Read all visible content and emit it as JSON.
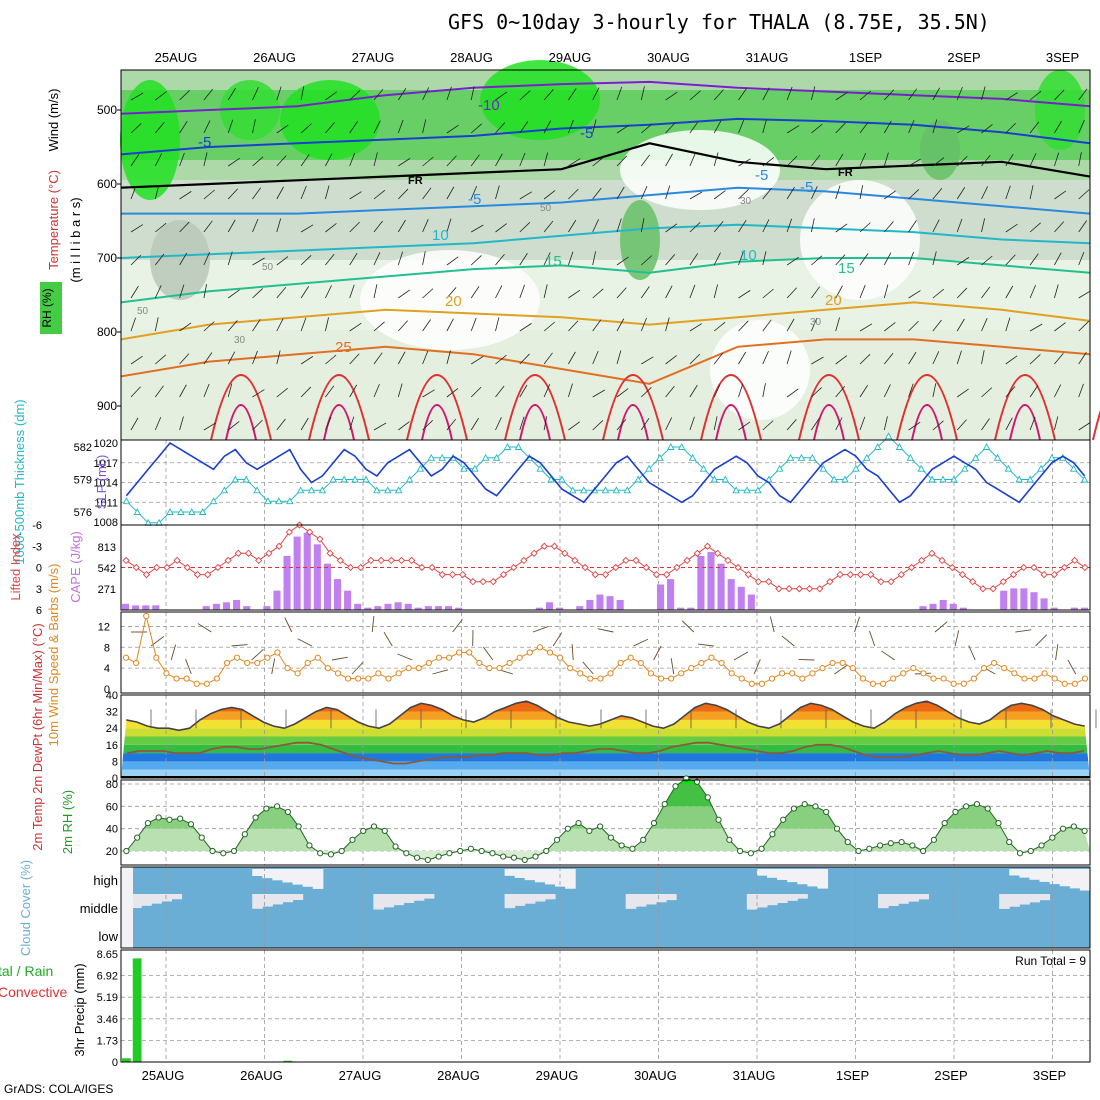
{
  "title": "GFS 0~10day 3-hourly for THALA (8.75E, 35.5N)",
  "credit": "GrADS: COLA/IGES",
  "colors": {
    "temp_line": "#dd3322",
    "dewpt_line": "#8a5a3a",
    "slp": "#1a3fd0",
    "thickness": "#22b8c8",
    "lifted": "#dd4444",
    "cape": "#c080f0",
    "wind": "#e08820",
    "rh": "#229922",
    "cloud": "#6aaed6",
    "cloud_bg": "#e6e6ec",
    "precip": "#22cc22"
  },
  "chart_data": [
    {
      "type": "heatmap",
      "panel": "vertical-cross-section",
      "ylabel_parts": [
        "Wind (m/s)",
        "Temperature (°C)",
        "(m i l l i b a r s)",
        "RH (%)"
      ],
      "y_ticks": [
        "500",
        "600",
        "700",
        "800",
        "900"
      ],
      "x_labels": [
        "25AUG",
        "26AUG",
        "27AUG",
        "28AUG",
        "29AUG",
        "30AUG",
        "31AUG",
        "1SEP",
        "2SEP",
        "3SEP"
      ],
      "contour_labels": [
        "-10",
        "-5",
        "-5",
        "-5",
        "FR",
        "FR",
        "-5",
        "-5",
        "10",
        "10",
        "15",
        "15",
        "20",
        "20",
        "25",
        "50",
        "50",
        "50",
        "30",
        "30",
        "30"
      ]
    },
    {
      "type": "line",
      "panel": "thickness-slp",
      "ylabel_left": "1000-500mb Thickness (dm)",
      "ylabel_right": "SLP (mb)",
      "y_left_ticks": [
        "582",
        "579",
        "576"
      ],
      "y_right_ticks": [
        "1020",
        "1017",
        "1014",
        "1011",
        "1008"
      ],
      "series": [
        {
          "name": "SLP (mb)",
          "axis": "right",
          "values": [
            1012,
            1014,
            1016,
            1018,
            1020,
            1019,
            1018,
            1017,
            1016,
            1018,
            1019,
            1017,
            1016,
            1017,
            1018,
            1019,
            1016,
            1014,
            1015,
            1017,
            1019,
            1018,
            1016,
            1015,
            1017,
            1018,
            1019,
            1017,
            1015,
            1016,
            1018,
            1017,
            1015,
            1013,
            1012,
            1014,
            1016,
            1018,
            1017,
            1015,
            1013,
            1012,
            1011,
            1013,
            1015,
            1017,
            1018,
            1016,
            1014,
            1013,
            1012,
            1011,
            1012,
            1014,
            1016,
            1017,
            1018,
            1017,
            1015,
            1014,
            1012,
            1011,
            1013,
            1015,
            1017,
            1018,
            1019,
            1018,
            1016,
            1015,
            1013,
            1011,
            1012,
            1014,
            1016,
            1017,
            1018,
            1017,
            1016,
            1014,
            1013,
            1012,
            1011,
            1013,
            1015,
            1017,
            1018,
            1017,
            1015
          ]
        },
        {
          "name": "Thickness (dm)",
          "axis": "left",
          "values": [
            577,
            576,
            575,
            575,
            576,
            576,
            576,
            576,
            577,
            578,
            579,
            579,
            578,
            577,
            577,
            577,
            578,
            578,
            578,
            579,
            579,
            579,
            579,
            578,
            578,
            578,
            579,
            580,
            581,
            581,
            581,
            580,
            580,
            581,
            581,
            582,
            582,
            581,
            580,
            579,
            579,
            578,
            578,
            578,
            578,
            578,
            578,
            579,
            580,
            581,
            582,
            582,
            581,
            580,
            579,
            579,
            578,
            578,
            578,
            579,
            580,
            581,
            581,
            581,
            580,
            579,
            579,
            580,
            581,
            582,
            583,
            582,
            581,
            580,
            579,
            579,
            579,
            580,
            581,
            582,
            581,
            580,
            579,
            579,
            580,
            581,
            581,
            580,
            579
          ]
        }
      ]
    },
    {
      "type": "bar",
      "panel": "lifted-cape",
      "ylabel_left": "Lifted Index",
      "ylabel_right": "CAPE (J/kg)",
      "y_left_ticks": [
        "-6",
        "-3",
        "0",
        "3",
        "6"
      ],
      "y_right_ticks": [
        "813",
        "542",
        "271"
      ],
      "series": [
        {
          "name": "CAPE (J/kg)",
          "kind": "bar",
          "values": [
            80,
            60,
            60,
            60,
            0,
            0,
            0,
            0,
            50,
            80,
            100,
            130,
            50,
            0,
            50,
            250,
            700,
            950,
            1000,
            850,
            600,
            400,
            250,
            80,
            30,
            50,
            80,
            100,
            80,
            30,
            50,
            50,
            50,
            30,
            0,
            0,
            0,
            0,
            0,
            0,
            0,
            30,
            100,
            30,
            0,
            50,
            130,
            200,
            180,
            130,
            0,
            0,
            0,
            330,
            400,
            30,
            30,
            700,
            750,
            600,
            400,
            300,
            200,
            0,
            0,
            0,
            0,
            0,
            0,
            0,
            0,
            0,
            0,
            0,
            0,
            0,
            0,
            0,
            0,
            50,
            80,
            130,
            80,
            30,
            0,
            0,
            0,
            250,
            280,
            280,
            230,
            150,
            30,
            0,
            30,
            30
          ]
        },
        {
          "name": "Lifted Index",
          "kind": "line",
          "values": [
            -1,
            0,
            1,
            0,
            0,
            -1,
            0,
            1,
            1,
            0,
            -1,
            -2,
            -2,
            -1,
            -2,
            -3,
            -5,
            -6,
            -5,
            -4,
            -2,
            -1,
            0,
            0,
            -1,
            -1,
            -1,
            -1,
            -1,
            0,
            0,
            1,
            1,
            1,
            2,
            2,
            2,
            1,
            0,
            -1,
            -2,
            -3,
            -3,
            -2,
            -1,
            0,
            1,
            1,
            0,
            -1,
            -1,
            0,
            1,
            1,
            0,
            -1,
            -2,
            -3,
            -2,
            -1,
            0,
            1,
            2,
            2,
            3,
            3,
            3,
            3,
            3,
            2,
            1,
            1,
            1,
            1,
            2,
            2,
            1,
            0,
            -1,
            -2,
            -1,
            0,
            1,
            2,
            3,
            3,
            2,
            1,
            0,
            0,
            1,
            1,
            0,
            -1,
            0
          ]
        }
      ]
    },
    {
      "type": "line",
      "panel": "wind",
      "ylabel": "10m Wind Speed & Barbs (m/s)",
      "y_ticks": [
        "12",
        "8",
        "4",
        "0"
      ],
      "series": [
        {
          "name": "10m Wind Speed (m/s)",
          "values": [
            6,
            5,
            14,
            6,
            3,
            2,
            2,
            1,
            1,
            2,
            5,
            6,
            5,
            5,
            6,
            7,
            4,
            3,
            5,
            6,
            4,
            3,
            2,
            2,
            2,
            3,
            2,
            3,
            4,
            4,
            5,
            6,
            6,
            7,
            7,
            5,
            4,
            4,
            5,
            6,
            7,
            8,
            7,
            6,
            4,
            3,
            2,
            2,
            3,
            5,
            6,
            5,
            3,
            2,
            2,
            3,
            4,
            5,
            6,
            5,
            3,
            2,
            1,
            1,
            2,
            3,
            3,
            2,
            3,
            4,
            5,
            5,
            4,
            2,
            1,
            1,
            2,
            3,
            4,
            3,
            2,
            2,
            1,
            1,
            2,
            4,
            5,
            4,
            3,
            2,
            2,
            3,
            2,
            1,
            1,
            2
          ]
        }
      ]
    },
    {
      "type": "area",
      "panel": "2m-temp",
      "ylabel": "2m Temp 2m DewPt (6hr Min/Max) (°C)",
      "y_ticks": [
        "40",
        "32",
        "24",
        "16",
        "8",
        "0"
      ],
      "series": [
        {
          "name": "2m Temp",
          "values": [
            28,
            27,
            25,
            24,
            24,
            23,
            24,
            28,
            31,
            33,
            34,
            33,
            30,
            27,
            25,
            24,
            26,
            29,
            32,
            34,
            33,
            30,
            27,
            25,
            24,
            26,
            30,
            34,
            36,
            35,
            33,
            30,
            28,
            27,
            29,
            32,
            34,
            36,
            37,
            35,
            32,
            29,
            27,
            26,
            25,
            26,
            28,
            30,
            29,
            27,
            25,
            24,
            26,
            30,
            34,
            36,
            35,
            33,
            30,
            27,
            25,
            24,
            26,
            30,
            34,
            36,
            35,
            33,
            30,
            27,
            25,
            24,
            27,
            31,
            34,
            36,
            37,
            35,
            32,
            29,
            27,
            26,
            28,
            32,
            35,
            36,
            35,
            33,
            30,
            28,
            26,
            25
          ]
        },
        {
          "name": "2m DewPt",
          "values": [
            12,
            13,
            13,
            13,
            12,
            12,
            12,
            14,
            15,
            15,
            14,
            14,
            15,
            16,
            17,
            17,
            16,
            14,
            12,
            10,
            9,
            8,
            7,
            7,
            8,
            9,
            10,
            10,
            10,
            11,
            11,
            12,
            12,
            12,
            11,
            11,
            12,
            12,
            13,
            14,
            14,
            13,
            12,
            12,
            13,
            15,
            16,
            17,
            17,
            16,
            15,
            14,
            13,
            12,
            12,
            13,
            15,
            16,
            16,
            15,
            13,
            11,
            10,
            10,
            10,
            11,
            12,
            13,
            12,
            11,
            11,
            12,
            13,
            12,
            11,
            12,
            13,
            12,
            12,
            13
          ]
        }
      ]
    },
    {
      "type": "area",
      "panel": "2m-rh",
      "ylabel": "2m RH (%)",
      "y_ticks": [
        "80",
        "60",
        "40",
        "20"
      ],
      "series": [
        {
          "name": "2m RH (%)",
          "values": [
            20,
            32,
            45,
            50,
            48,
            49,
            44,
            32,
            20,
            18,
            20,
            35,
            50,
            58,
            60,
            55,
            42,
            25,
            18,
            17,
            20,
            30,
            38,
            42,
            38,
            24,
            18,
            14,
            12,
            15,
            18,
            20,
            22,
            20,
            18,
            15,
            14,
            12,
            15,
            20,
            30,
            40,
            45,
            38,
            42,
            32,
            25,
            22,
            30,
            45,
            62,
            78,
            85,
            82,
            68,
            48,
            30,
            20,
            18,
            22,
            35,
            48,
            58,
            62,
            60,
            55,
            40,
            28,
            20,
            22,
            25,
            27,
            28,
            25,
            20,
            30,
            45,
            55,
            60,
            62,
            58,
            45,
            28,
            18,
            20,
            25,
            32,
            40,
            42,
            38
          ]
        }
      ]
    },
    {
      "type": "bar",
      "panel": "cloud-cover",
      "ylabel": "Cloud Cover (%)",
      "y_ticks": [
        "high",
        "middle",
        "low"
      ]
    },
    {
      "type": "bar",
      "panel": "precip",
      "ylabel": "3hr Precip (mm)",
      "ylabel_side_1": "tal / Rain",
      "ylabel_side_2": "Convective",
      "y_ticks": [
        "8.65",
        "6.92",
        "5.19",
        "3.46",
        "1.73",
        "0"
      ],
      "note": "Run Total = 9",
      "x_labels": [
        "25AUG",
        "26AUG",
        "27AUG",
        "28AUG",
        "29AUG",
        "30AUG",
        "31AUG",
        "1SEP",
        "2SEP",
        "3SEP"
      ],
      "values": [
        0.3,
        8.3,
        0,
        0,
        0,
        0,
        0,
        0,
        0,
        0,
        0,
        0,
        0,
        0,
        0,
        0.1,
        0,
        0,
        0,
        0,
        0,
        0,
        0,
        0,
        0,
        0,
        0,
        0,
        0,
        0,
        0,
        0,
        0,
        0,
        0,
        0,
        0,
        0,
        0,
        0,
        0,
        0,
        0,
        0,
        0,
        0,
        0,
        0,
        0,
        0,
        0,
        0,
        0,
        0,
        0,
        0,
        0,
        0,
        0,
        0,
        0,
        0,
        0,
        0,
        0,
        0,
        0,
        0,
        0,
        0,
        0,
        0,
        0,
        0,
        0,
        0,
        0,
        0,
        0,
        0,
        0,
        0,
        0,
        0,
        0,
        0,
        0,
        0,
        0,
        0
      ]
    }
  ]
}
